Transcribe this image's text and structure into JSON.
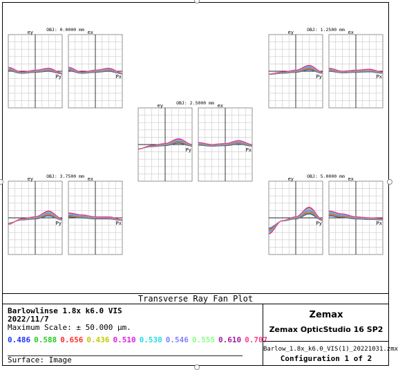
{
  "chart_data": {
    "type": "line",
    "title": "Transverse Ray Fan Plot",
    "axis_labels": {
      "tangential_y": "ey",
      "sagittal_y": "ex",
      "tangential_x": "Py",
      "sagittal_x": "Px"
    },
    "ylim": [
      -50,
      50
    ],
    "xlim": [
      -1,
      1
    ],
    "grid": true,
    "wavelengths_um": [
      "0.486",
      "0.588",
      "0.656",
      "0.436",
      "0.510",
      "0.530",
      "0.546",
      "0.555",
      "0.610",
      "0.707"
    ],
    "wavelength_colors": [
      "#1f33ff",
      "#22cc22",
      "#ff2d2d",
      "#c8c800",
      "#e020e0",
      "#22dddd",
      "#8080ff",
      "#88ff88",
      "#a020a0",
      "#ff3b8d"
    ],
    "fields": [
      {
        "label": "OBJ: 0.0000 mm",
        "tangential": [
          [
            -1,
            3
          ],
          [
            -0.5,
            -2
          ],
          [
            0,
            0
          ],
          [
            0.5,
            2
          ],
          [
            1,
            -3
          ]
        ],
        "sagittal": [
          [
            -1,
            3
          ],
          [
            -0.5,
            -2
          ],
          [
            0,
            0
          ],
          [
            0.5,
            2
          ],
          [
            1,
            -3
          ]
        ]
      },
      {
        "label": "OBJ: 1.2500 mm",
        "tangential": [
          [
            -1,
            -4
          ],
          [
            -0.5,
            -2
          ],
          [
            0,
            0
          ],
          [
            0.5,
            5
          ],
          [
            1,
            -2
          ]
        ],
        "sagittal": [
          [
            -1,
            2
          ],
          [
            -0.5,
            -1
          ],
          [
            0,
            0
          ],
          [
            0.5,
            1
          ],
          [
            1,
            -2
          ]
        ]
      },
      {
        "label": "OBJ: 2.5000 mm",
        "tangential": [
          [
            -1,
            -6
          ],
          [
            -0.5,
            -2
          ],
          [
            0,
            0
          ],
          [
            0.5,
            5
          ],
          [
            1,
            -1
          ]
        ],
        "sagittal": [
          [
            -1,
            1
          ],
          [
            -0.5,
            -1
          ],
          [
            0,
            0
          ],
          [
            0.5,
            3
          ],
          [
            1,
            -1
          ]
        ]
      },
      {
        "label": "OBJ: 3.7500 mm",
        "tangential": [
          [
            -1,
            -8
          ],
          [
            -0.5,
            -2
          ],
          [
            0,
            0
          ],
          [
            0.5,
            6
          ],
          [
            1,
            -2
          ]
        ],
        "sagittal": [
          [
            -1,
            4
          ],
          [
            -0.5,
            2
          ],
          [
            0,
            0
          ],
          [
            0.5,
            0
          ],
          [
            1,
            -3
          ]
        ]
      },
      {
        "label": "OBJ: 5.0000 mm",
        "tangential": [
          [
            -1,
            -18
          ],
          [
            -0.5,
            -4
          ],
          [
            0,
            0
          ],
          [
            0.5,
            10
          ],
          [
            1,
            -3
          ]
        ],
        "sagittal": [
          [
            -1,
            6
          ],
          [
            -0.5,
            3
          ],
          [
            0,
            0
          ],
          [
            0.5,
            -1
          ],
          [
            1,
            -2
          ]
        ]
      }
    ]
  },
  "footer": {
    "plot_title": "Transverse Ray Fan Plot",
    "lens_name": "Barlowlinse 1.8x k6.0 VIS",
    "date": "2022/11/7",
    "max_scale": "Maximum Scale: ± 50.000 µm.",
    "surface": "Surface: Image",
    "company": "Zemax",
    "software": "Zemax OpticStudio 16 SP2",
    "file": "Barlow_1.8x_k6.0_VIS(1)_20221031.zmx",
    "configuration": "Configuration 1 of 2"
  }
}
